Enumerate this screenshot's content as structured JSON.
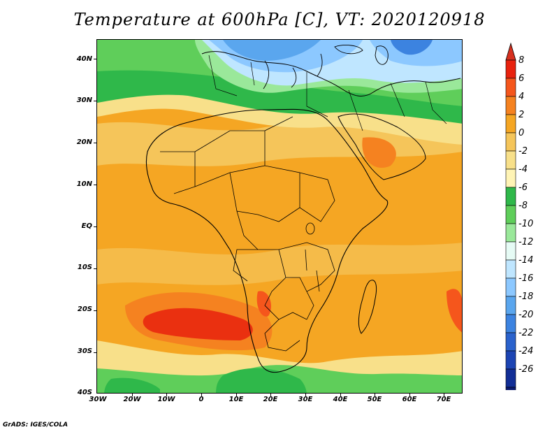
{
  "title": "Temperature at 600hPa [C], VT: 2020120918",
  "credit": "GrADS: IGES/COLA",
  "map": {
    "lat_labels": [
      "40N",
      "30N",
      "20N",
      "10N",
      "EQ",
      "10S",
      "20S",
      "30S",
      "40S"
    ],
    "lon_labels": [
      "30W",
      "20W",
      "10W",
      "0",
      "10E",
      "20E",
      "30E",
      "40E",
      "50E",
      "60E",
      "70E"
    ]
  },
  "colorbar": {
    "labels": [
      "8",
      "6",
      "4",
      "2",
      "0",
      "-2",
      "-4",
      "-6",
      "-8",
      "-10",
      "-12",
      "-14",
      "-16",
      "-18",
      "-20",
      "-22",
      "-24",
      "-26"
    ],
    "colors": [
      "#e8220e",
      "#f5561c",
      "#f58220",
      "#f5a623",
      "#f5c55a",
      "#f8e08a",
      "#fff4b5",
      "#2fb84a",
      "#5fce5a",
      "#9ae89a",
      "#e6fbf5",
      "#bfe6ff",
      "#8cc8ff",
      "#5aa6ee",
      "#3c83e0",
      "#2a62cc",
      "#1c44b3",
      "#122e96",
      "#0a1a70"
    ],
    "top_color": "#d7301f",
    "bottom_color": "#dcdcff"
  }
}
